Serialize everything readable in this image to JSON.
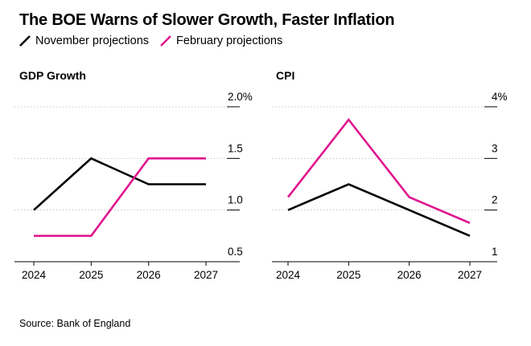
{
  "title": "The BOE Warns of Slower Growth, Faster Inflation",
  "legend": [
    {
      "label": "November projections",
      "color": "#000000"
    },
    {
      "label": "February projections",
      "color": "#e0168f"
    }
  ],
  "source": "Source: Bank of England",
  "chart_data": [
    {
      "type": "line",
      "title": "GDP Growth",
      "categories": [
        "2024",
        "2025",
        "2026",
        "2027"
      ],
      "ylim": [
        0.5,
        2.0
      ],
      "yticks": [
        2.0,
        1.5,
        1.0,
        0.5
      ],
      "ytick_labels": [
        "2.0%",
        "1.5",
        "1.0",
        "0.5"
      ],
      "series": [
        {
          "name": "November projections",
          "color": "#000000",
          "values": [
            1.0,
            1.5,
            1.25,
            1.25
          ]
        },
        {
          "name": "February projections",
          "color": "#e0168f",
          "values": [
            0.75,
            0.75,
            1.5,
            1.5
          ]
        }
      ]
    },
    {
      "type": "line",
      "title": "CPI",
      "categories": [
        "2024",
        "2025",
        "2026",
        "2027"
      ],
      "ylim": [
        1,
        4
      ],
      "yticks": [
        4,
        3,
        2,
        1
      ],
      "ytick_labels": [
        "4%",
        "3",
        "2",
        "1"
      ],
      "series": [
        {
          "name": "November projections",
          "color": "#000000",
          "values": [
            2.0,
            2.5,
            2.0,
            1.5
          ]
        },
        {
          "name": "February projections",
          "color": "#e0168f",
          "values": [
            2.25,
            3.75,
            2.25,
            1.75
          ]
        }
      ]
    }
  ]
}
